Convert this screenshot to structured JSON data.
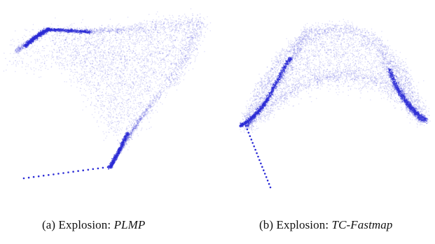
{
  "figure": {
    "subfigures": [
      {
        "label": "(a)",
        "caption_prefix": "Explosion:",
        "method": "PLMP"
      },
      {
        "label": "(b)",
        "caption_prefix": "Explosion:",
        "method": "TC-Fastmap"
      }
    ]
  },
  "colors": {
    "point": "#2a2ad6",
    "background": "#ffffff",
    "caption_text": "#111111"
  }
}
